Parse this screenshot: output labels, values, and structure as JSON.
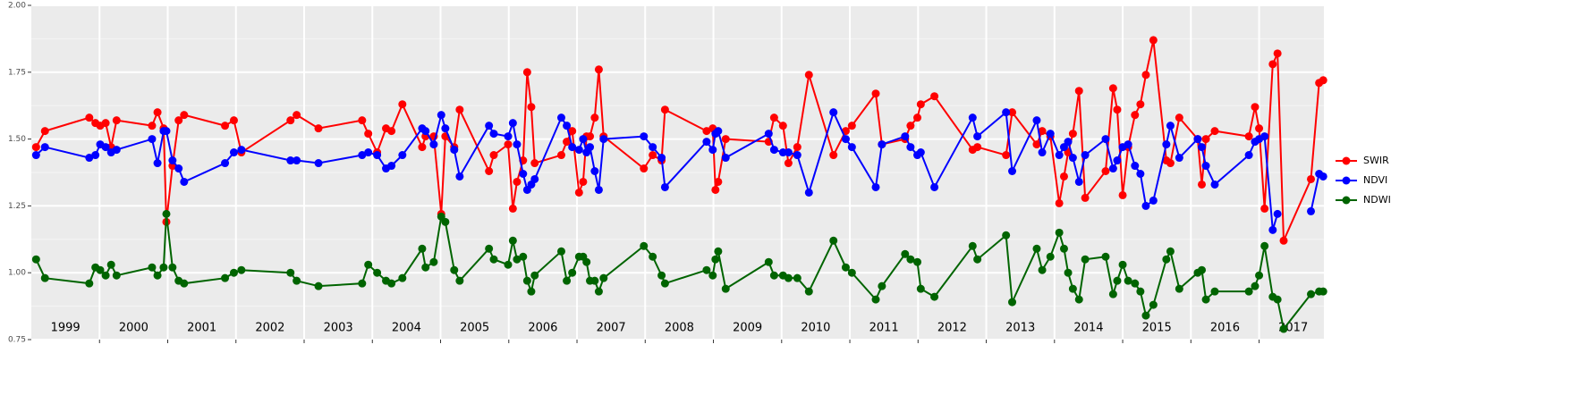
{
  "chart_data": {
    "type": "line",
    "xlim": [
      1999.0,
      2017.95
    ],
    "xticks": [
      2000,
      2001,
      2002,
      2003,
      2004,
      2005,
      2006,
      2007,
      2008,
      2009,
      2010,
      2011,
      2012,
      2013,
      2014,
      2015,
      2016,
      2017
    ],
    "ylim": [
      0.75,
      2.0
    ],
    "yticks": [
      0.75,
      {
        "value": 1.0,
        "label": "1.00"
      },
      1.25,
      {
        "value": 1.5,
        "label": "1.50"
      },
      1.75,
      {
        "value": 2.0,
        "label": "2.00"
      }
    ],
    "yminor": [
      0.875,
      1.125,
      1.375,
      1.625,
      1.875
    ],
    "grid": true,
    "legend": "right",
    "annotations": [
      "1999",
      "2000",
      "2001",
      "2002",
      "2003",
      "2004",
      "2005",
      "2006",
      "2007",
      "2008",
      "2009",
      "2010",
      "2011",
      "2012",
      "2013",
      "2014",
      "2015",
      "2016",
      "2017"
    ],
    "x": [
      1999.07,
      1999.2,
      1999.85,
      1999.94,
      2000.01,
      2000.09,
      2000.17,
      2000.25,
      2000.77,
      2000.85,
      2000.94,
      2000.98,
      2001.07,
      2001.16,
      2001.24,
      2001.84,
      2001.97,
      2002.08,
      2002.8,
      2002.89,
      2003.21,
      2003.85,
      2003.94,
      2004.07,
      2004.2,
      2004.28,
      2004.44,
      2004.73,
      2004.78,
      2004.9,
      2005.01,
      2005.07,
      2005.2,
      2005.28,
      2005.71,
      2005.78,
      2005.99,
      2006.06,
      2006.12,
      2006.21,
      2006.27,
      2006.33,
      2006.38,
      2006.77,
      2006.85,
      2006.93,
      2007.03,
      2007.09,
      2007.14,
      2007.19,
      2007.26,
      2007.32,
      2007.39,
      2007.98,
      2008.11,
      2008.24,
      2008.29,
      2008.9,
      2008.99,
      2009.03,
      2009.07,
      2009.18,
      2009.81,
      2009.89,
      2010.02,
      2010.1,
      2010.23,
      2010.4,
      2010.76,
      2010.94,
      2011.03,
      2011.38,
      2011.47,
      2011.81,
      2011.89,
      2011.99,
      2012.04,
      2012.24,
      2012.8,
      2012.87,
      2013.29,
      2013.38,
      2013.74,
      2013.82,
      2013.94,
      2014.07,
      2014.14,
      2014.2,
      2014.27,
      2014.36,
      2014.45,
      2014.75,
      2014.86,
      2014.92,
      2015.0,
      2015.08,
      2015.18,
      2015.26,
      2015.34,
      2015.45,
      2015.64,
      2015.7,
      2015.83,
      2016.1,
      2016.16,
      2016.22,
      2016.35,
      2016.85,
      2016.94,
      2017.0,
      2017.08,
      2017.2,
      2017.27,
      2017.36,
      2017.76,
      2017.88,
      2017.94
    ],
    "series": [
      {
        "name": "SWIR",
        "color": "#ff0000",
        "values": [
          1.47,
          1.53,
          1.58,
          1.56,
          1.55,
          1.56,
          1.47,
          1.57,
          1.55,
          1.6,
          1.54,
          1.19,
          1.4,
          1.57,
          1.59,
          1.55,
          1.57,
          1.45,
          1.57,
          1.59,
          1.54,
          1.57,
          1.52,
          1.45,
          1.54,
          1.53,
          1.63,
          1.47,
          1.51,
          1.51,
          1.22,
          1.51,
          1.47,
          1.61,
          1.38,
          1.44,
          1.48,
          1.24,
          1.34,
          1.42,
          1.75,
          1.62,
          1.41,
          1.44,
          1.49,
          1.53,
          1.3,
          1.34,
          1.51,
          1.51,
          1.58,
          1.76,
          1.51,
          1.39,
          1.44,
          1.42,
          1.61,
          1.53,
          1.54,
          1.31,
          1.34,
          1.5,
          1.49,
          1.58,
          1.55,
          1.41,
          1.47,
          1.74,
          1.44,
          1.53,
          1.55,
          1.67,
          1.48,
          1.5,
          1.55,
          1.58,
          1.63,
          1.66,
          1.46,
          1.47,
          1.44,
          1.6,
          1.48,
          1.53,
          1.51,
          1.26,
          1.36,
          1.45,
          1.52,
          1.68,
          1.28,
          1.38,
          1.69,
          1.61,
          1.29,
          1.47,
          1.59,
          1.63,
          1.74,
          1.87,
          1.42,
          1.41,
          1.58,
          1.5,
          1.33,
          1.5,
          1.53,
          1.51,
          1.62,
          1.54,
          1.24,
          1.78,
          1.82,
          1.12,
          1.35,
          1.71,
          1.72
        ]
      },
      {
        "name": "NDVI",
        "color": "#0000ff",
        "values": [
          1.44,
          1.47,
          1.43,
          1.44,
          1.48,
          1.47,
          1.45,
          1.46,
          1.5,
          1.41,
          1.53,
          1.53,
          1.42,
          1.39,
          1.34,
          1.41,
          1.45,
          1.46,
          1.42,
          1.42,
          1.41,
          1.44,
          1.45,
          1.44,
          1.39,
          1.4,
          1.44,
          1.54,
          1.53,
          1.48,
          1.59,
          1.54,
          1.46,
          1.36,
          1.55,
          1.52,
          1.51,
          1.56,
          1.48,
          1.37,
          1.31,
          1.33,
          1.35,
          1.58,
          1.55,
          1.47,
          1.46,
          1.5,
          1.45,
          1.47,
          1.38,
          1.31,
          1.5,
          1.51,
          1.47,
          1.43,
          1.32,
          1.49,
          1.46,
          1.52,
          1.53,
          1.43,
          1.52,
          1.46,
          1.45,
          1.45,
          1.44,
          1.3,
          1.6,
          1.5,
          1.47,
          1.32,
          1.48,
          1.51,
          1.47,
          1.44,
          1.45,
          1.32,
          1.58,
          1.51,
          1.6,
          1.38,
          1.57,
          1.45,
          1.52,
          1.44,
          1.47,
          1.49,
          1.43,
          1.34,
          1.44,
          1.5,
          1.39,
          1.42,
          1.47,
          1.48,
          1.4,
          1.37,
          1.25,
          1.27,
          1.48,
          1.55,
          1.43,
          1.5,
          1.47,
          1.4,
          1.33,
          1.44,
          1.49,
          1.5,
          1.51,
          1.16,
          1.22,
          null,
          1.23,
          1.37,
          1.36
        ]
      },
      {
        "name": "NDWI",
        "color": "#006400",
        "values": [
          1.05,
          0.98,
          0.96,
          1.02,
          1.01,
          0.99,
          1.03,
          0.99,
          1.02,
          0.99,
          1.02,
          1.22,
          1.02,
          0.97,
          0.96,
          0.98,
          1.0,
          1.01,
          1.0,
          0.97,
          0.95,
          0.96,
          1.03,
          1.0,
          0.97,
          0.96,
          0.98,
          1.09,
          1.02,
          1.04,
          1.21,
          1.19,
          1.01,
          0.97,
          1.09,
          1.05,
          1.03,
          1.12,
          1.05,
          1.06,
          0.97,
          0.93,
          0.99,
          1.08,
          0.97,
          1.0,
          1.06,
          1.06,
          1.04,
          0.97,
          0.97,
          0.93,
          0.98,
          1.1,
          1.06,
          0.99,
          0.96,
          1.01,
          0.99,
          1.05,
          1.08,
          0.94,
          1.04,
          0.99,
          0.99,
          0.98,
          0.98,
          0.93,
          1.12,
          1.02,
          1.0,
          0.9,
          0.95,
          1.07,
          1.05,
          1.04,
          0.94,
          0.91,
          1.1,
          1.05,
          1.14,
          0.89,
          1.09,
          1.01,
          1.06,
          1.15,
          1.09,
          1.0,
          0.94,
          0.9,
          1.05,
          1.06,
          0.92,
          0.97,
          1.03,
          0.97,
          0.96,
          0.93,
          0.84,
          0.88,
          1.05,
          1.08,
          0.94,
          1.0,
          1.01,
          0.9,
          0.93,
          0.93,
          0.95,
          0.99,
          1.1,
          0.91,
          0.9,
          0.79,
          0.92,
          0.93,
          0.93
        ]
      }
    ]
  }
}
